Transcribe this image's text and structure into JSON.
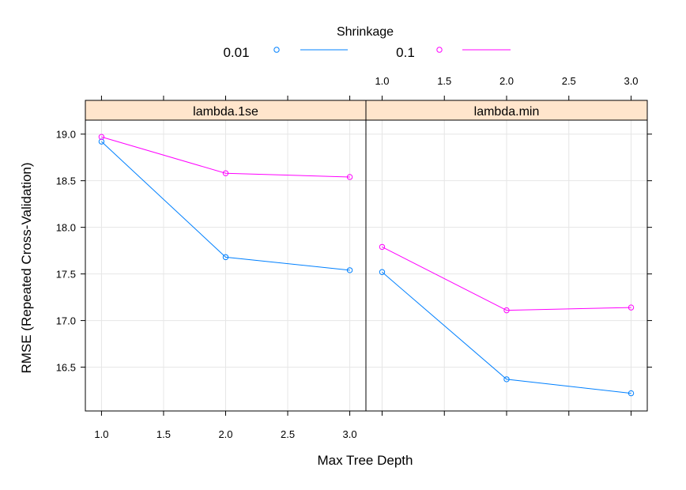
{
  "chart_data": {
    "type": "line",
    "legend": {
      "title": "Shrinkage",
      "placement": "top"
    },
    "xlabel": "Max Tree Depth",
    "ylabel": "RMSE (Repeated Cross-Validation)",
    "x": [
      1.0,
      2.0,
      3.0
    ],
    "xlim": [
      0.87,
      3.13
    ],
    "ylim": [
      16.03,
      19.15
    ],
    "x_ticks": [
      "1.0",
      "1.5",
      "2.0",
      "2.5",
      "3.0"
    ],
    "y_ticks": [
      "16.5",
      "17.0",
      "17.5",
      "18.0",
      "18.5",
      "19.0"
    ],
    "grid": true,
    "panels": [
      {
        "strip": "lambda.1se",
        "series": [
          {
            "name": "0.01",
            "color": "#0080FF",
            "values": [
              18.92,
              17.68,
              17.54
            ]
          },
          {
            "name": "0.1",
            "color": "#FF00FF",
            "values": [
              18.97,
              18.58,
              18.54
            ]
          }
        ]
      },
      {
        "strip": "lambda.min",
        "series": [
          {
            "name": "0.01",
            "color": "#0080FF",
            "values": [
              17.52,
              16.37,
              16.22
            ]
          },
          {
            "name": "0.1",
            "color": "#FF00FF",
            "values": [
              17.79,
              17.11,
              17.14
            ]
          }
        ]
      }
    ],
    "strip_color": "#FFE5CC",
    "grid_color": "#E6E6E6"
  }
}
